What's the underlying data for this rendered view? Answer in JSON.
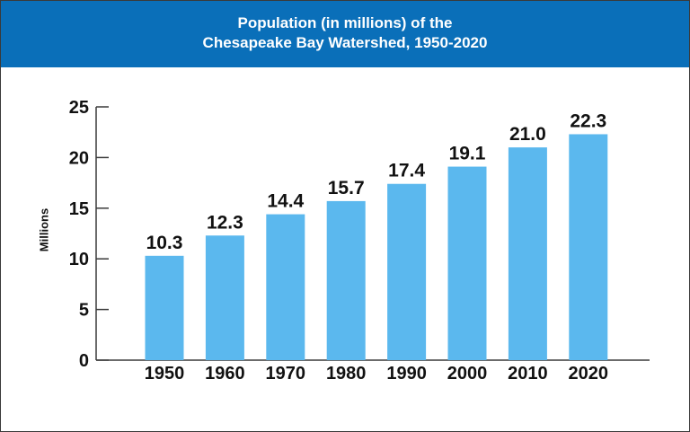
{
  "header": {
    "title_line1": "Population (in millions) of the",
    "title_line2": "Chesapeake Bay Watershed, 1950-2020"
  },
  "colors": {
    "header_bg": "#0a6fb9",
    "bar": "#5bb8ee",
    "axis": "#3a3a3a",
    "text": "#111111"
  },
  "chart_data": {
    "type": "bar",
    "title": "Population (in millions) of the Chesapeake Bay Watershed, 1950-2020",
    "xlabel": "",
    "ylabel": "Millions",
    "categories": [
      "1950",
      "1960",
      "1970",
      "1980",
      "1990",
      "2000",
      "2010",
      "2020"
    ],
    "values": [
      10.3,
      12.3,
      14.4,
      15.7,
      17.4,
      19.1,
      21.0,
      22.3
    ],
    "value_labels": [
      "10.3",
      "12.3",
      "14.4",
      "15.7",
      "17.4",
      "19.1",
      "21.0",
      "22.3"
    ],
    "ylim": [
      0,
      25
    ],
    "yticks": [
      0,
      5,
      10,
      15,
      20,
      25
    ],
    "grid": false,
    "legend": "none"
  }
}
